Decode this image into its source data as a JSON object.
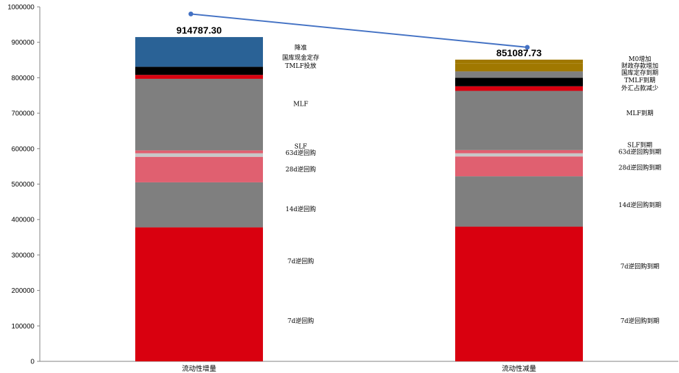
{
  "chart_data": {
    "type": "bar",
    "stacked": true,
    "y_ticks": [
      "0",
      "100000",
      "200000",
      "300000",
      "400000",
      "500000",
      "600000",
      "700000",
      "800000",
      "900000",
      "1000000"
    ],
    "ylim": [
      0,
      1000000
    ],
    "grid": false,
    "colors": {
      "red": "#d9000f",
      "gray": "#7f7f7f",
      "pink": "#e06070",
      "light_gray": "#c8c8c8",
      "black": "#000000",
      "blue": "#2a6296",
      "gold": "#a07800",
      "line": "#4472c4"
    },
    "stacks": [
      {
        "category": "流动性增量",
        "total": 914787.3,
        "total_label": "914787.30",
        "segments": [
          {
            "name": "7d逆回购",
            "value": 378000,
            "color": "#d9000f"
          },
          {
            "name": "14d逆回购",
            "value": 127000,
            "color": "#7f7f7f"
          },
          {
            "name": "28d逆回购",
            "value": 72000,
            "color": "#e06070"
          },
          {
            "name": "63d逆回购",
            "value": 10000,
            "color": "#c8c8c8"
          },
          {
            "name": "SLF",
            "value": 8000,
            "color": "#e06070"
          },
          {
            "name": "MLF",
            "value": 202000,
            "color": "#7f7f7f"
          },
          {
            "name": "TMLF投放",
            "value": 11000,
            "color": "#d9000f"
          },
          {
            "name": "国库现金定存",
            "value": 23000,
            "color": "#000000"
          },
          {
            "name": "降准",
            "value": 83787.3,
            "color": "#2a6296"
          }
        ],
        "labels": [
          {
            "text": "降准",
            "y": 885000
          },
          {
            "text": "国库现金定存",
            "y": 857000
          },
          {
            "text": "TMLF投放",
            "y": 834000
          },
          {
            "text": "MLF",
            "y": 726000
          },
          {
            "text": "SLF",
            "y": 606000
          },
          {
            "text": "63d逆回购",
            "y": 588000
          },
          {
            "text": "28d逆回购",
            "y": 542000
          },
          {
            "text": "14d逆回购",
            "y": 429000
          },
          {
            "text": "7d逆回购",
            "y": 282000
          },
          {
            "text": "7d逆回购",
            "y": 114000
          }
        ]
      },
      {
        "category": "流动性减量",
        "total": 851087.73,
        "total_label": "851087.73",
        "segments": [
          {
            "name": "7d逆回购到期",
            "value": 380000,
            "color": "#d9000f"
          },
          {
            "name": "14d逆回购到期",
            "value": 142000,
            "color": "#7f7f7f"
          },
          {
            "name": "28d逆回购到期",
            "value": 56000,
            "color": "#e06070"
          },
          {
            "name": "63d逆回购到期",
            "value": 9000,
            "color": "#c8c8c8"
          },
          {
            "name": "SLF到期",
            "value": 9000,
            "color": "#e06070"
          },
          {
            "name": "MLF到期",
            "value": 167000,
            "color": "#7f7f7f"
          },
          {
            "name": "外汇占款减少",
            "value": 13000,
            "color": "#d9000f"
          },
          {
            "name": "TMLF到期",
            "value": 24000,
            "color": "#000000"
          },
          {
            "name": "国库定存到期",
            "value": 18000,
            "color": "#7f7f7f"
          },
          {
            "name": "财政存款增加",
            "value": 22000,
            "color": "#a07800"
          },
          {
            "name": "M0增加",
            "value": 11087.73,
            "color": "#a07800"
          }
        ],
        "labels": [
          {
            "text": "M0增加",
            "y": 853000
          },
          {
            "text": "财政存款增加",
            "y": 834000
          },
          {
            "text": "国库定存到期",
            "y": 814000
          },
          {
            "text": "TMLF到期",
            "y": 793000
          },
          {
            "text": "外汇占款减少",
            "y": 771000
          },
          {
            "text": "MLF到期",
            "y": 700000
          },
          {
            "text": "SLF到期",
            "y": 610000
          },
          {
            "text": "63d逆回购到期",
            "y": 591000
          },
          {
            "text": "28d逆回购到期",
            "y": 546000
          },
          {
            "text": "14d逆回购到期",
            "y": 441000
          },
          {
            "text": "7d逆回购到期",
            "y": 268000
          },
          {
            "text": "7d逆回购到期",
            "y": 114000
          }
        ]
      }
    ],
    "line_series": {
      "points": [
        980000,
        886000
      ]
    }
  }
}
